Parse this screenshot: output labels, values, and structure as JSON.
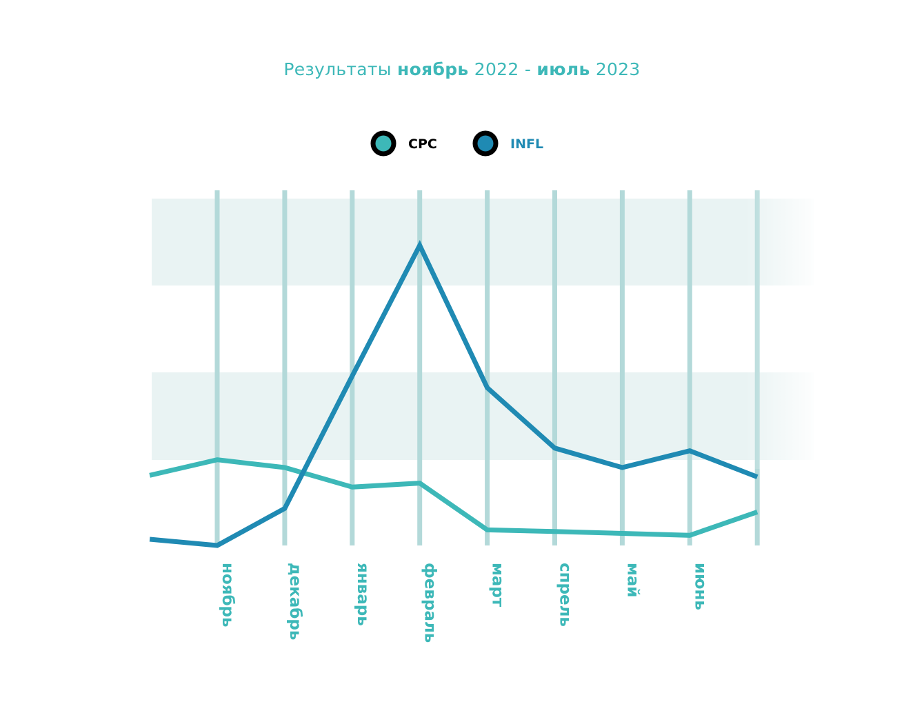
{
  "title": {
    "prefix": "Результаты",
    "start_month": "ноябрь",
    "start_year": "2022",
    "separator": "-",
    "end_month": "июль",
    "end_year": "2023"
  },
  "colors": {
    "cpc": "#3db8b8",
    "infl": "#1f8ab3",
    "band": "#e9f3f3",
    "gridline": "#b3d9d9",
    "axis": "#000000",
    "label": "#3db8b8"
  },
  "chart_data": {
    "type": "line",
    "x_labels": [
      "ноябрь",
      "декабрь",
      "январь",
      "февраль",
      "март",
      "спрель",
      "май",
      "июнь"
    ],
    "x_positions": [
      -1,
      0,
      1,
      2,
      3,
      4,
      5,
      6,
      7,
      8
    ],
    "grid": true,
    "legend_position": "top-center",
    "ylim": [
      0,
      100
    ],
    "series": [
      {
        "name": "CPC",
        "color": "#3db8b8",
        "x": [
          -1,
          0,
          1,
          2,
          3,
          4,
          5,
          6,
          7,
          8
        ],
        "values": [
          18,
          22,
          20,
          15,
          16,
          4,
          3.6,
          3.1,
          2.6,
          8.6
        ]
      },
      {
        "name": "INFL",
        "color": "#1f8ab3",
        "x": [
          -1,
          0,
          1,
          2,
          3,
          4,
          5,
          6,
          7,
          8
        ],
        "values": [
          1.6,
          0,
          9.5,
          43.5,
          77,
          40.5,
          25,
          20,
          24.3,
          17.6
        ]
      }
    ]
  }
}
